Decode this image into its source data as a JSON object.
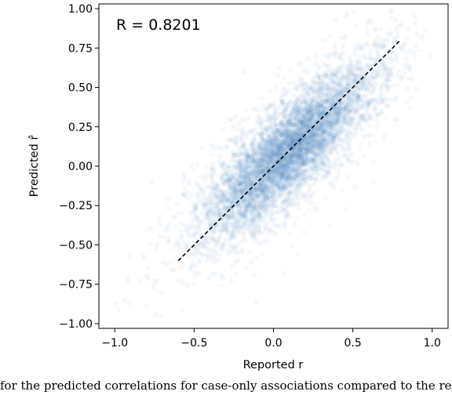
{
  "chart_data": {
    "type": "scatter",
    "xlabel": "Reported r",
    "ylabel": "Predicted r̂",
    "xlim": [
      -1.1,
      1.1
    ],
    "ylim": [
      -1.03,
      1.03
    ],
    "xticks": [
      -1.0,
      -0.5,
      0.0,
      0.5,
      1.0
    ],
    "xtick_labels": [
      "−1.0",
      "−0.5",
      "0.0",
      "0.5",
      "1.0"
    ],
    "yticks": [
      1.0,
      0.75,
      0.5,
      0.25,
      0.0,
      -0.25,
      -0.5,
      -0.75,
      -1.0
    ],
    "ytick_labels": [
      "1.00",
      "0.75",
      "0.50",
      "0.25",
      "0.00",
      "−0.25",
      "−0.50",
      "−0.75",
      "−1.00"
    ],
    "annotation": "R = 0.8201",
    "grid": false,
    "point_color": "#4a90c8",
    "point_opacity": 0.05,
    "reference_line": {
      "style": "dashed",
      "color": "#000000",
      "points": [
        [
          -0.6,
          -0.6
        ],
        [
          0.8,
          0.8
        ]
      ]
    },
    "point_cloud": {
      "correlation": 0.8201,
      "x_range": [
        -1.0,
        1.0
      ],
      "y_range": [
        -1.0,
        1.0
      ],
      "x_center": 0.1,
      "y_center": 0.1
    }
  },
  "caption": "for the predicted correlations for case-only associations compared to the reported for"
}
